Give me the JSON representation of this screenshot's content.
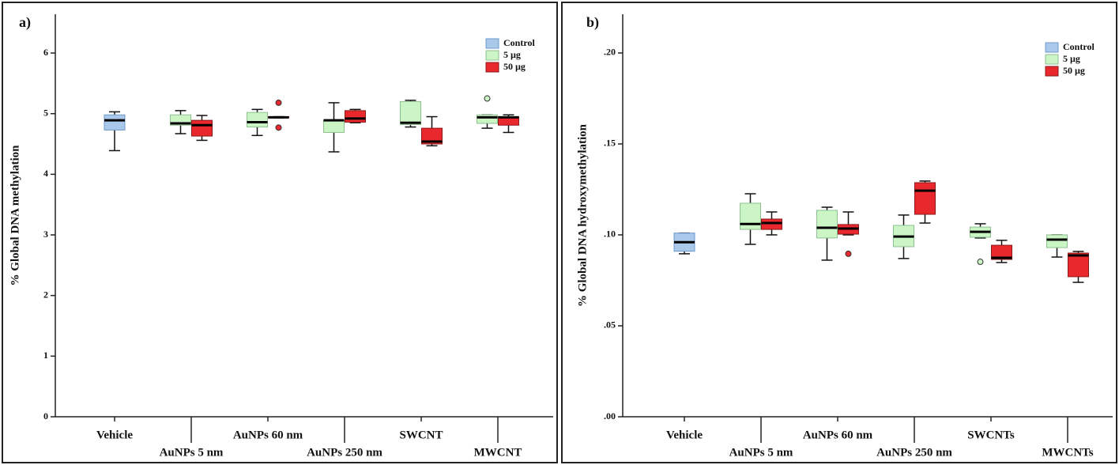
{
  "chart_data": [
    {
      "type": "box",
      "label": "a)",
      "ylabel": "% Global DNA methylation",
      "categories": [
        "Vehicle",
        "AuNPs 5 nm",
        "AuNPs 60 nm",
        "AuNPs 250 nm",
        "SWCNT",
        "MWCNT"
      ],
      "ylim": [
        0,
        6.64
      ],
      "yticks": [
        0,
        1,
        2,
        3,
        4,
        5,
        6
      ],
      "legend": "upper right",
      "series": [
        {
          "name": "Control",
          "color": "#a9c8ea",
          "min": [
            4.39,
            null,
            null,
            null,
            null,
            null
          ],
          "q1": [
            4.73,
            null,
            null,
            null,
            null,
            null
          ],
          "median": [
            4.89,
            null,
            null,
            null,
            null,
            null
          ],
          "q3": [
            4.98,
            null,
            null,
            null,
            null,
            null
          ],
          "max": [
            5.03,
            null,
            null,
            null,
            null,
            null
          ],
          "outliers": [
            [],
            null,
            null,
            null,
            null,
            null
          ]
        },
        {
          "name": "5  µg",
          "color": "#ccf5c5",
          "min": [
            null,
            4.67,
            4.64,
            4.37,
            4.78,
            4.76
          ],
          "q1": [
            null,
            4.81,
            4.78,
            4.69,
            4.82,
            4.84
          ],
          "median": [
            null,
            4.84,
            4.86,
            4.89,
            4.85,
            4.94
          ],
          "q3": [
            null,
            4.98,
            5.02,
            4.89,
            5.2,
            4.98
          ],
          "max": [
            null,
            5.05,
            5.07,
            5.18,
            5.22,
            4.98
          ],
          "outliers": [
            null,
            [],
            [],
            [],
            [],
            [
              5.25
            ]
          ]
        },
        {
          "name": "50  µg",
          "color": "#e8282c",
          "min": [
            null,
            4.56,
            4.93,
            4.85,
            4.47,
            4.69
          ],
          "q1": [
            null,
            4.63,
            4.93,
            4.86,
            4.5,
            4.81
          ],
          "median": [
            null,
            4.81,
            4.94,
            4.92,
            4.54,
            4.94
          ],
          "q3": [
            null,
            4.89,
            4.95,
            5.05,
            4.76,
            4.95
          ],
          "max": [
            null,
            4.97,
            4.95,
            5.07,
            4.95,
            4.98
          ],
          "outliers": [
            null,
            [],
            [
              5.18,
              4.77
            ],
            [],
            [],
            []
          ]
        }
      ]
    },
    {
      "type": "box",
      "label": "b)",
      "ylabel": "% Global DNA hydroxymethylation",
      "categories": [
        "Vehicle",
        "AuNPs 5 nm",
        "AuNPs 60 nm",
        "AuNPs 250 nm",
        "SWCNTs",
        "MWCNTs"
      ],
      "ylim": [
        0,
        0.2213
      ],
      "yticks": [
        {
          "value": 0,
          "label": ".00"
        },
        {
          "value": 0.05,
          "label": ".05"
        },
        {
          "value": 0.1,
          "label": ".10"
        },
        {
          "value": 0.15,
          "label": ".15"
        },
        {
          "value": 0.2,
          "label": ".20"
        }
      ],
      "legend": "upper right",
      "series": [
        {
          "name": "Control",
          "color": "#a9c8ea",
          "min": [
            0.0896,
            null,
            null,
            null,
            null,
            null
          ],
          "q1": [
            0.091,
            null,
            null,
            null,
            null,
            null
          ],
          "median": [
            0.096,
            null,
            null,
            null,
            null,
            null
          ],
          "q3": [
            0.101,
            null,
            null,
            null,
            null,
            null
          ],
          "max": [
            0.101,
            null,
            null,
            null,
            null,
            null
          ],
          "outliers": [
            [],
            null,
            null,
            null,
            null,
            null
          ]
        },
        {
          "name": "5  µg",
          "color": "#ccf5c5",
          "min": [
            null,
            0.0948,
            0.0861,
            0.087,
            0.0983,
            0.0878
          ],
          "q1": [
            null,
            0.103,
            0.0983,
            0.0935,
            0.0987,
            0.093
          ],
          "median": [
            null,
            0.106,
            0.1039,
            0.0991,
            0.1017,
            0.0974
          ],
          "q3": [
            null,
            0.1174,
            0.1135,
            0.1052,
            0.1043,
            0.1
          ],
          "max": [
            null,
            0.1226,
            0.1152,
            0.1109,
            0.1061,
            0.1
          ],
          "outliers": [
            null,
            [],
            [],
            [],
            [
              0.0852
            ],
            []
          ]
        },
        {
          "name": "50  µg",
          "color": "#e8282c",
          "min": [
            null,
            0.1,
            0.1,
            0.1065,
            0.0848,
            0.0739
          ],
          "q1": [
            null,
            0.103,
            0.1004,
            0.1113,
            0.0865,
            0.077
          ],
          "median": [
            null,
            0.1065,
            0.1035,
            0.1243,
            0.0874,
            0.0887
          ],
          "q3": [
            null,
            0.1087,
            0.1057,
            0.1287,
            0.0943,
            0.09
          ],
          "max": [
            null,
            0.1126,
            0.1126,
            0.1296,
            0.097,
            0.0909
          ],
          "outliers": [
            null,
            [],
            [
              0.0896
            ],
            [],
            [],
            []
          ]
        }
      ]
    }
  ]
}
